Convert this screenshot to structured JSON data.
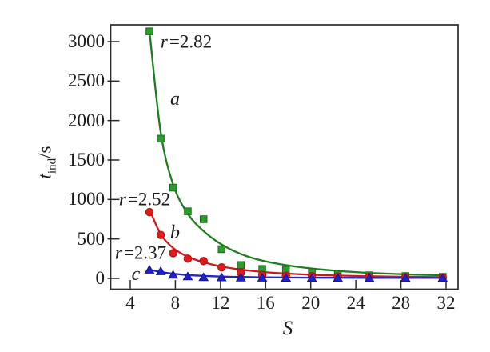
{
  "figure": {
    "background": "#ffffff",
    "frame_color": "#2b2b2b",
    "text_color": "#1c1c1c"
  },
  "chart_data": {
    "type": "scatter",
    "title": "",
    "xlabel": "S",
    "ylabel": "t_ind/s",
    "ylabel_parts": {
      "var": "t",
      "sub": "ind",
      "unit": "/s"
    },
    "xlim": [
      2.3,
      33.1
    ],
    "ylim": [
      -140,
      3215
    ],
    "x_ticks": [
      4,
      8,
      12,
      16,
      20,
      24,
      28,
      32
    ],
    "y_ticks": [
      0,
      500,
      1000,
      1500,
      2000,
      2500,
      3000
    ],
    "grid": false,
    "legend_position": "inline-annotations",
    "x": [
      5.7,
      6.7,
      7.8,
      9.1,
      10.5,
      12.1,
      13.8,
      15.7,
      17.8,
      20.1,
      22.4,
      25.2,
      28.4,
      31.7
    ],
    "series": [
      {
        "name": "a",
        "r_label": "r=2.82",
        "marker": "square",
        "marker_color": "#2e9b30",
        "marker_edge": "#156d15",
        "line_color": "#1e7d1e",
        "values": [
          3130,
          1770,
          1150,
          850,
          750,
          370,
          170,
          120,
          110,
          80,
          50,
          40,
          30,
          20
        ],
        "fit": [
          [
            5.75,
            3070
          ],
          [
            6.7,
            1850
          ],
          [
            7.8,
            1190
          ],
          [
            9.1,
            820
          ],
          [
            10.5,
            600
          ],
          [
            12.1,
            430
          ],
          [
            13.8,
            310
          ],
          [
            15.7,
            225
          ],
          [
            17.8,
            168
          ],
          [
            20.1,
            125
          ],
          [
            22.4,
            95
          ],
          [
            25.2,
            70
          ],
          [
            28.4,
            52
          ],
          [
            31.9,
            40
          ]
        ]
      },
      {
        "name": "b",
        "r_label": "r=2.52",
        "marker": "circle",
        "marker_color": "#e31a1a",
        "marker_edge": "#a80f0f",
        "line_color": "#d01818",
        "values": [
          840,
          550,
          320,
          250,
          220,
          140,
          70,
          45,
          35,
          30,
          25,
          20,
          15,
          12
        ],
        "fit": [
          [
            5.75,
            860
          ],
          [
            6.7,
            560
          ],
          [
            7.8,
            385
          ],
          [
            9.1,
            275
          ],
          [
            10.5,
            205
          ],
          [
            12.1,
            150
          ],
          [
            13.8,
            112
          ],
          [
            15.7,
            82
          ],
          [
            17.8,
            62
          ],
          [
            20.1,
            46
          ],
          [
            22.4,
            36
          ],
          [
            25.2,
            27
          ],
          [
            28.4,
            20
          ],
          [
            31.9,
            16
          ]
        ]
      },
      {
        "name": "c",
        "r_label": "r=2.37",
        "marker": "triangle",
        "marker_color": "#2121cd",
        "marker_edge": "#14148f",
        "line_color": "#2525c0",
        "values": [
          110,
          90,
          45,
          25,
          15,
          12,
          10,
          8,
          7,
          6,
          6,
          5,
          5,
          5
        ],
        "fit": [
          [
            5.75,
            108
          ],
          [
            6.7,
            82
          ],
          [
            7.8,
            60
          ],
          [
            9.1,
            43
          ],
          [
            10.5,
            32
          ],
          [
            12.1,
            24
          ],
          [
            13.8,
            18
          ],
          [
            15.7,
            14
          ],
          [
            17.8,
            11
          ],
          [
            20.1,
            9
          ],
          [
            22.4,
            8
          ],
          [
            25.2,
            7
          ],
          [
            28.4,
            6
          ],
          [
            31.9,
            6
          ]
        ]
      }
    ],
    "annotations": [
      {
        "text_var": "r",
        "text_rest": "=2.82",
        "series": "a"
      },
      {
        "text": "a",
        "series": "a"
      },
      {
        "text_var": "r",
        "text_rest": "=2.52",
        "series": "b"
      },
      {
        "text": "b",
        "series": "b"
      },
      {
        "text_var": "r",
        "text_rest": "=2.37",
        "series": "c"
      },
      {
        "text": "c",
        "series": "c"
      }
    ]
  }
}
